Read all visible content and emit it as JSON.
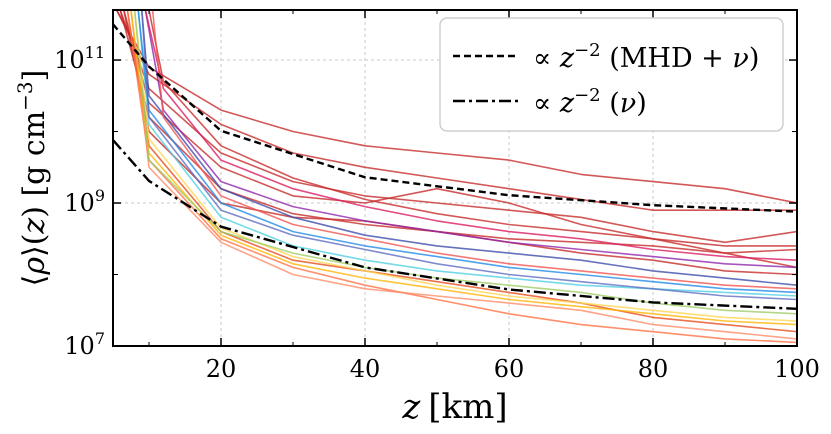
{
  "chart_data": {
    "type": "line",
    "xlabel": "z [km]",
    "ylabel": "⟨ρ⟩(z) [g cm⁻³]",
    "xlim": [
      5,
      100
    ],
    "ylim_log10": [
      7,
      11.7
    ],
    "yscale": "log",
    "grid": true,
    "legend_position": "top-right",
    "xticks": [
      20,
      40,
      60,
      80,
      100
    ],
    "xtick_labels": [
      "20",
      "40",
      "60",
      "80",
      "100"
    ],
    "yticks_log10": [
      7,
      9,
      11
    ],
    "ytick_labels": [
      {
        "base": "10",
        "exp": "7"
      },
      {
        "base": "10",
        "exp": "9"
      },
      {
        "base": "10",
        "exp": "11"
      }
    ],
    "reference_curves": [
      {
        "name": "∝ z⁻² (MHD + ν)",
        "style": "dashed",
        "color": "#000000",
        "points": [
          [
            5,
            11.5
          ],
          [
            10,
            10.91
          ],
          [
            20,
            10.01
          ],
          [
            40,
            9.36
          ],
          [
            60,
            9.11
          ],
          [
            80,
            8.97
          ],
          [
            100,
            8.88
          ]
        ]
      },
      {
        "name": "∝ z⁻² (ν)",
        "style": "dashdot",
        "color": "#000000",
        "points": [
          [
            5,
            9.88
          ],
          [
            10,
            9.31
          ],
          [
            20,
            8.67
          ],
          [
            40,
            8.1
          ],
          [
            60,
            7.79
          ],
          [
            80,
            7.61
          ],
          [
            100,
            7.52
          ]
        ]
      }
    ],
    "series": [
      {
        "color": "#c62828",
        "points": [
          [
            5.5,
            11.7
          ],
          [
            10,
            10.9
          ],
          [
            20,
            10.3
          ],
          [
            30,
            10.0
          ],
          [
            40,
            9.8
          ],
          [
            50,
            9.7
          ],
          [
            60,
            9.6
          ],
          [
            70,
            9.4
          ],
          [
            80,
            9.3
          ],
          [
            90,
            9.2
          ],
          [
            100,
            9.0
          ]
        ]
      },
      {
        "color": "#c62828",
        "points": [
          [
            5.5,
            11.7
          ],
          [
            10,
            10.8
          ],
          [
            20,
            10.1
          ],
          [
            30,
            9.7
          ],
          [
            40,
            9.5
          ],
          [
            50,
            9.35
          ],
          [
            60,
            9.2
          ],
          [
            70,
            9.05
          ],
          [
            80,
            8.9
          ],
          [
            90,
            8.9
          ],
          [
            100,
            8.9
          ]
        ]
      },
      {
        "color": "#c62828",
        "points": [
          [
            6,
            11.7
          ],
          [
            10,
            10.6
          ],
          [
            20,
            9.7
          ],
          [
            30,
            9.3
          ],
          [
            40,
            9.1
          ],
          [
            50,
            9.0
          ],
          [
            60,
            8.9
          ],
          [
            70,
            8.8
          ],
          [
            80,
            8.6
          ],
          [
            90,
            8.45
          ],
          [
            100,
            8.6
          ]
        ]
      },
      {
        "color": "#c62828",
        "points": [
          [
            6,
            11.7
          ],
          [
            10,
            10.2
          ],
          [
            20,
            9.2
          ],
          [
            30,
            8.85
          ],
          [
            40,
            8.7
          ],
          [
            50,
            8.6
          ],
          [
            60,
            8.5
          ],
          [
            70,
            8.45
          ],
          [
            80,
            8.4
          ],
          [
            90,
            8.3
          ],
          [
            100,
            8.35
          ]
        ]
      },
      {
        "color": "#c62828",
        "points": [
          [
            6.5,
            11.7
          ],
          [
            10,
            10.4
          ],
          [
            20,
            9.5
          ],
          [
            30,
            9.1
          ],
          [
            40,
            9.0
          ],
          [
            50,
            9.2
          ],
          [
            60,
            9.0
          ],
          [
            70,
            8.7
          ],
          [
            80,
            8.5
          ],
          [
            90,
            8.3
          ],
          [
            100,
            8.1
          ]
        ]
      },
      {
        "color": "#c62828",
        "points": [
          [
            6.5,
            11.7
          ],
          [
            10,
            10.0
          ],
          [
            20,
            9.0
          ],
          [
            30,
            8.8
          ],
          [
            40,
            8.75
          ],
          [
            50,
            8.6
          ],
          [
            60,
            8.45
          ],
          [
            70,
            8.3
          ],
          [
            80,
            8.2
          ],
          [
            90,
            8.05
          ],
          [
            100,
            8.0
          ]
        ]
      },
      {
        "color": "#e64a19",
        "points": [
          [
            7,
            11.7
          ],
          [
            10,
            9.8
          ],
          [
            20,
            8.6
          ],
          [
            30,
            8.2
          ],
          [
            40,
            8.05
          ],
          [
            50,
            7.9
          ],
          [
            60,
            7.75
          ],
          [
            70,
            7.6
          ],
          [
            80,
            7.4
          ],
          [
            90,
            7.3
          ],
          [
            100,
            7.2
          ]
        ]
      },
      {
        "color": "#ff7043",
        "points": [
          [
            7,
            11.7
          ],
          [
            10,
            9.6
          ],
          [
            20,
            8.5
          ],
          [
            30,
            8.1
          ],
          [
            40,
            7.85
          ],
          [
            50,
            7.65
          ],
          [
            60,
            7.45
          ],
          [
            70,
            7.3
          ],
          [
            80,
            7.2
          ],
          [
            90,
            7.1
          ],
          [
            100,
            7.05
          ]
        ]
      },
      {
        "color": "#ff8a65",
        "points": [
          [
            7.5,
            11.7
          ],
          [
            10,
            9.5
          ],
          [
            20,
            8.45
          ],
          [
            30,
            8.0
          ],
          [
            40,
            7.8
          ],
          [
            50,
            7.7
          ],
          [
            60,
            7.6
          ],
          [
            70,
            7.5
          ],
          [
            80,
            7.3
          ],
          [
            90,
            7.2
          ],
          [
            100,
            7.1
          ]
        ]
      },
      {
        "color": "#ffb300",
        "points": [
          [
            7.5,
            11.7
          ],
          [
            10,
            9.7
          ],
          [
            20,
            8.55
          ],
          [
            30,
            8.15
          ],
          [
            40,
            7.95
          ],
          [
            50,
            7.8
          ],
          [
            60,
            7.65
          ],
          [
            70,
            7.55
          ],
          [
            80,
            7.45
          ],
          [
            90,
            7.35
          ],
          [
            100,
            7.3
          ]
        ]
      },
      {
        "color": "#ffd54f",
        "points": [
          [
            8,
            11.7
          ],
          [
            10,
            9.9
          ],
          [
            20,
            8.65
          ],
          [
            30,
            8.25
          ],
          [
            40,
            8.05
          ],
          [
            50,
            7.85
          ],
          [
            60,
            7.7
          ],
          [
            70,
            7.6
          ],
          [
            80,
            7.5
          ],
          [
            90,
            7.4
          ],
          [
            100,
            7.35
          ]
        ]
      },
      {
        "color": "#9ccc65",
        "points": [
          [
            8,
            11.7
          ],
          [
            10,
            9.6
          ],
          [
            20,
            8.6
          ],
          [
            30,
            8.3
          ],
          [
            40,
            8.1
          ],
          [
            50,
            7.95
          ],
          [
            60,
            7.85
          ],
          [
            70,
            7.75
          ],
          [
            80,
            7.6
          ],
          [
            90,
            7.5
          ],
          [
            100,
            7.45
          ]
        ]
      },
      {
        "color": "#4dd0e1",
        "points": [
          [
            8.5,
            11.7
          ],
          [
            10,
            10.1
          ],
          [
            20,
            8.8
          ],
          [
            30,
            8.4
          ],
          [
            40,
            8.2
          ],
          [
            50,
            8.05
          ],
          [
            60,
            7.95
          ],
          [
            70,
            7.85
          ],
          [
            80,
            7.8
          ],
          [
            90,
            7.75
          ],
          [
            100,
            7.7
          ]
        ]
      },
      {
        "color": "#1e88e5",
        "points": [
          [
            8.5,
            11.7
          ],
          [
            10,
            10.3
          ],
          [
            20,
            9.0
          ],
          [
            30,
            8.6
          ],
          [
            40,
            8.4
          ],
          [
            50,
            8.25
          ],
          [
            60,
            8.1
          ],
          [
            70,
            8.0
          ],
          [
            80,
            7.9
          ],
          [
            90,
            7.8
          ],
          [
            100,
            7.75
          ]
        ]
      },
      {
        "color": "#3949ab",
        "points": [
          [
            9,
            11.7
          ],
          [
            10,
            10.5
          ],
          [
            20,
            9.2
          ],
          [
            30,
            8.8
          ],
          [
            40,
            8.55
          ],
          [
            50,
            8.4
          ],
          [
            60,
            8.3
          ],
          [
            70,
            8.2
          ],
          [
            80,
            8.05
          ],
          [
            90,
            7.95
          ],
          [
            100,
            7.85
          ]
        ]
      },
      {
        "color": "#5c6bc0",
        "points": [
          [
            9,
            11.7
          ],
          [
            10,
            10.2
          ],
          [
            20,
            8.9
          ],
          [
            30,
            8.55
          ],
          [
            40,
            8.35
          ],
          [
            50,
            8.15
          ],
          [
            60,
            8.0
          ],
          [
            70,
            7.9
          ],
          [
            80,
            7.8
          ],
          [
            90,
            7.7
          ],
          [
            100,
            7.65
          ]
        ]
      },
      {
        "color": "#8e24aa",
        "points": [
          [
            9.5,
            11.7
          ],
          [
            12,
            10.3
          ],
          [
            20,
            9.3
          ],
          [
            30,
            8.95
          ],
          [
            40,
            8.75
          ],
          [
            50,
            8.6
          ],
          [
            60,
            8.45
          ],
          [
            70,
            8.35
          ],
          [
            80,
            8.25
          ],
          [
            90,
            8.15
          ],
          [
            100,
            8.1
          ]
        ]
      },
      {
        "color": "#d81b60",
        "points": [
          [
            9.5,
            11.7
          ],
          [
            12,
            10.6
          ],
          [
            20,
            9.6
          ],
          [
            30,
            9.2
          ],
          [
            40,
            8.95
          ],
          [
            50,
            8.75
          ],
          [
            60,
            8.6
          ],
          [
            70,
            8.5
          ],
          [
            80,
            8.35
          ],
          [
            90,
            8.25
          ],
          [
            100,
            8.2
          ]
        ]
      },
      {
        "color": "#c62828",
        "points": [
          [
            10,
            11.7
          ],
          [
            12,
            10.7
          ],
          [
            20,
            9.8
          ],
          [
            30,
            9.35
          ],
          [
            40,
            9.05
          ],
          [
            50,
            8.85
          ],
          [
            60,
            8.7
          ],
          [
            70,
            8.6
          ],
          [
            80,
            8.5
          ],
          [
            90,
            8.4
          ],
          [
            100,
            8.4
          ]
        ]
      },
      {
        "color": "#ef5350",
        "points": [
          [
            10.5,
            11.7
          ],
          [
            12,
            10.2
          ],
          [
            20,
            9.1
          ],
          [
            30,
            8.7
          ],
          [
            40,
            8.5
          ],
          [
            50,
            8.3
          ],
          [
            60,
            8.15
          ],
          [
            70,
            8.05
          ],
          [
            80,
            7.95
          ],
          [
            90,
            7.85
          ],
          [
            100,
            7.8
          ]
        ]
      }
    ]
  }
}
